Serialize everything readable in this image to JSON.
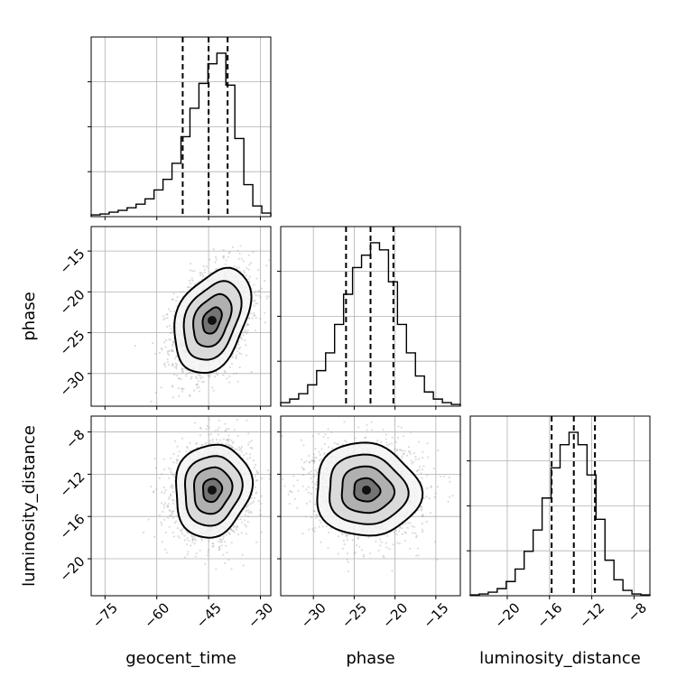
{
  "chart_data": {
    "type": "corner",
    "parameters": [
      "geocent_time",
      "phase",
      "luminosity_distance"
    ],
    "axis_labels": {
      "x": [
        "geocent_time",
        "phase",
        "luminosity_distance"
      ],
      "y": [
        "",
        "phase",
        "luminosity_distance"
      ]
    },
    "ranges": {
      "geocent_time": [
        -79,
        -27
      ],
      "phase": [
        -34,
        -12
      ],
      "luminosity_distance": [
        -23.5,
        -6.5
      ]
    },
    "ticks": {
      "geocent_time": [
        -75,
        -60,
        -45,
        -30
      ],
      "phase": [
        -30,
        -25,
        -20,
        -15
      ],
      "luminosity_distance": [
        -20,
        -16,
        -12,
        -8
      ]
    },
    "tick_labels": {
      "geocent_time": [
        "−75",
        "−60",
        "−45",
        "−30"
      ],
      "phase": [
        "−30",
        "−25",
        "−20",
        "−15"
      ],
      "luminosity_distance": [
        "−20",
        "−16",
        "−12",
        "−8"
      ]
    },
    "quantiles": {
      "geocent_time": [
        -52.5,
        -45,
        -39.5
      ],
      "phase": [
        -26,
        -23,
        -20.2
      ],
      "luminosity_distance": [
        -15.8,
        -13.7,
        -11.7
      ]
    },
    "histograms": {
      "geocent_time": {
        "edges": [
          -79,
          -76.4,
          -73.8,
          -71.2,
          -68.6,
          -66,
          -63.4,
          -60.8,
          -58.2,
          -55.6,
          -53,
          -50.4,
          -47.8,
          -45.2,
          -42.6,
          -40,
          -37.4,
          -34.8,
          -32.2,
          -29.6,
          -27
        ],
        "counts": [
          0.01,
          0.015,
          0.025,
          0.035,
          0.05,
          0.07,
          0.1,
          0.15,
          0.21,
          0.3,
          0.45,
          0.61,
          0.75,
          0.86,
          0.92,
          0.74,
          0.44,
          0.18,
          0.06,
          0.02
        ]
      },
      "phase": {
        "edges": [
          -34,
          -32.9,
          -31.8,
          -30.7,
          -29.6,
          -28.5,
          -27.4,
          -26.3,
          -25.2,
          -24.1,
          -23,
          -21.9,
          -20.8,
          -19.7,
          -18.6,
          -17.5,
          -16.4,
          -15.3,
          -14.2,
          -13.1,
          -12
        ],
        "counts": [
          0.02,
          0.04,
          0.07,
          0.12,
          0.2,
          0.3,
          0.46,
          0.63,
          0.78,
          0.85,
          0.92,
          0.88,
          0.7,
          0.46,
          0.3,
          0.17,
          0.08,
          0.04,
          0.02,
          0.01
        ]
      },
      "luminosity_distance": {
        "edges": [
          -23.5,
          -22.65,
          -21.8,
          -20.95,
          -20.1,
          -19.25,
          -18.4,
          -17.55,
          -16.7,
          -15.85,
          -15,
          -14.15,
          -13.3,
          -12.45,
          -11.6,
          -10.75,
          -9.9,
          -9.05,
          -8.2,
          -7.35,
          -6.5
        ],
        "counts": [
          0.005,
          0.01,
          0.02,
          0.04,
          0.08,
          0.15,
          0.25,
          0.37,
          0.55,
          0.72,
          0.85,
          0.92,
          0.85,
          0.68,
          0.43,
          0.2,
          0.09,
          0.03,
          0.01,
          0.005
        ]
      }
    },
    "joint_distributions": [
      {
        "x": "geocent_time",
        "y": "phase",
        "mean": [
          -44,
          -23.5
        ],
        "std": [
          5.5,
          3.2
        ],
        "correlation": 0.35
      },
      {
        "x": "geocent_time",
        "y": "luminosity_distance",
        "mean": [
          -44,
          -13.5
        ],
        "std": [
          5.5,
          2.2
        ],
        "correlation": 0.1
      },
      {
        "x": "phase",
        "y": "luminosity_distance",
        "mean": [
          -23.5,
          -13.5
        ],
        "std": [
          3.2,
          2.2
        ],
        "correlation": -0.05
      }
    ],
    "contour_levels_sigma": [
      0.5,
      1.0,
      1.5,
      2.0
    ]
  }
}
